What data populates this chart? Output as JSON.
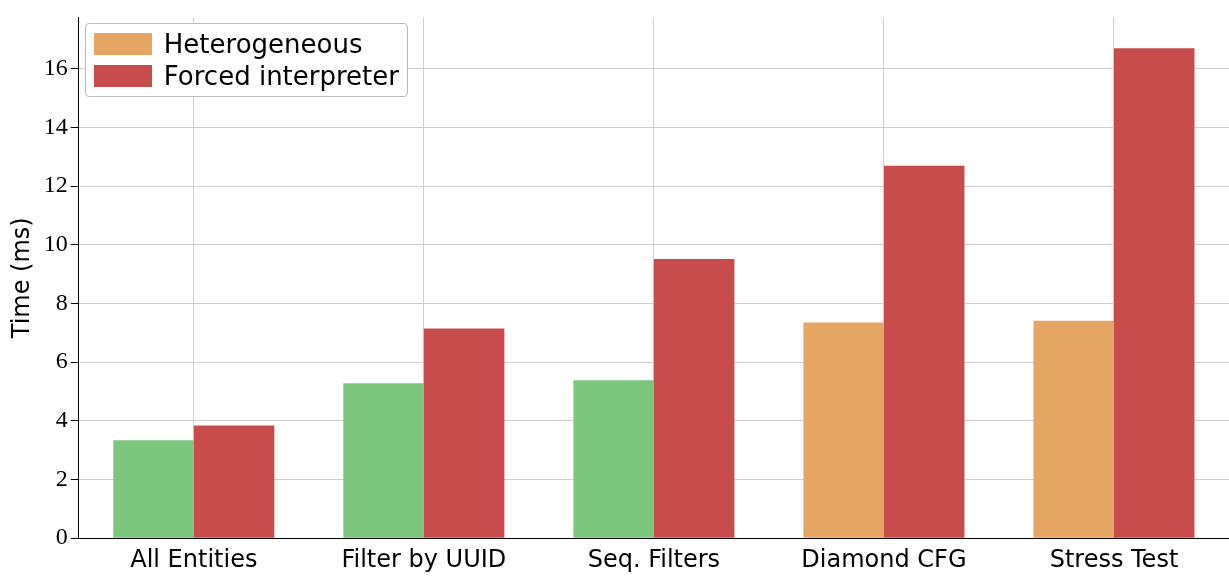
{
  "chart_data": {
    "type": "bar",
    "ylabel": "Time (ms)",
    "categories": [
      "All Entities",
      "Filter by UUID",
      "Seq. Filters",
      "Diamond CFG",
      "Stress Test"
    ],
    "series": [
      {
        "color": "#7cc67e",
        "values": [
          3.34,
          5.28,
          5.38,
          null,
          null
        ]
      },
      {
        "name": "Heterogeneous",
        "color": "#e5a663",
        "values": [
          null,
          null,
          null,
          7.35,
          7.41
        ]
      },
      {
        "name": "Forced interpreter",
        "color": "#c94c4c",
        "values": [
          3.84,
          7.15,
          9.52,
          12.69,
          16.7
        ]
      }
    ],
    "ylim": [
      0,
      17.75
    ],
    "yticks": [
      0,
      2,
      4,
      6,
      8,
      10,
      12,
      14,
      16
    ],
    "grid": true,
    "legend": "top left"
  }
}
